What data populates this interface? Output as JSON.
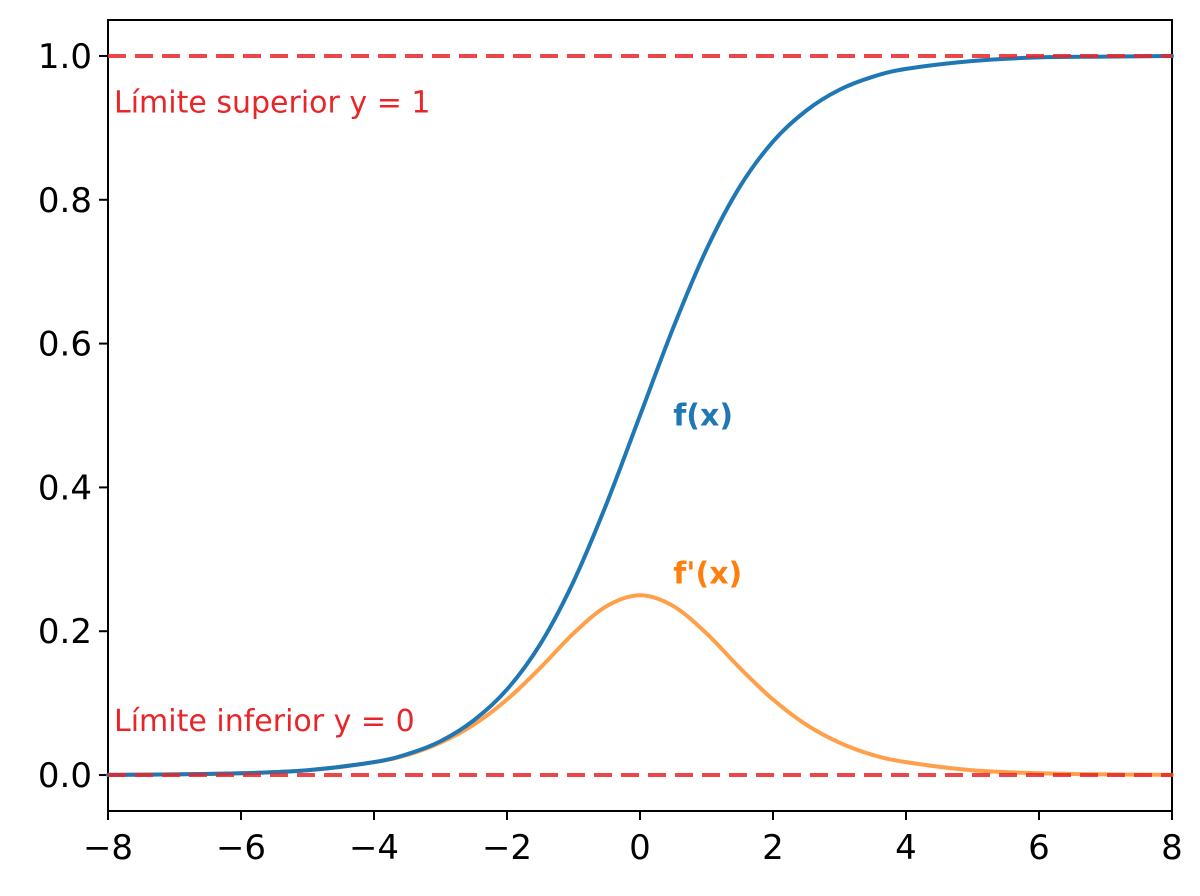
{
  "chart_data": {
    "type": "line",
    "title": "",
    "xlabel": "",
    "ylabel": "",
    "xlim": [
      -8,
      8
    ],
    "ylim": [
      -0.05,
      1.05
    ],
    "x_ticks": [
      -8,
      -6,
      -4,
      -2,
      0,
      2,
      4,
      6,
      8
    ],
    "x_tick_labels": [
      "−8",
      "−6",
      "−4",
      "−2",
      "0",
      "2",
      "4",
      "6",
      "8"
    ],
    "y_ticks": [
      0.0,
      0.2,
      0.4,
      0.6,
      0.8,
      1.0
    ],
    "y_tick_labels": [
      "0.0",
      "0.2",
      "0.4",
      "0.6",
      "0.8",
      "1.0"
    ],
    "grid": false,
    "series": [
      {
        "name": "f(x)",
        "color": "#1f77b4",
        "x": [
          -8,
          -7,
          -6,
          -5,
          -4,
          -3.5,
          -3,
          -2.5,
          -2,
          -1.5,
          -1,
          -0.5,
          0,
          0.5,
          1,
          1.5,
          2,
          2.5,
          3,
          3.5,
          4,
          5,
          6,
          7,
          8
        ],
        "y": [
          0.0003,
          0.0009,
          0.0025,
          0.0067,
          0.018,
          0.029,
          0.047,
          0.076,
          0.119,
          0.182,
          0.269,
          0.378,
          0.5,
          0.622,
          0.731,
          0.818,
          0.881,
          0.924,
          0.953,
          0.971,
          0.982,
          0.993,
          0.998,
          0.999,
          1.0
        ]
      },
      {
        "name": "f'(x)",
        "color": "#ff7f0e",
        "x": [
          -8,
          -7,
          -6,
          -5,
          -4,
          -3.5,
          -3,
          -2.5,
          -2,
          -1.5,
          -1,
          -0.5,
          0,
          0.5,
          1,
          1.5,
          2,
          2.5,
          3,
          3.5,
          4,
          5,
          6,
          7,
          8
        ],
        "y": [
          0.0003,
          0.0009,
          0.0025,
          0.0066,
          0.018,
          0.028,
          0.045,
          0.07,
          0.105,
          0.149,
          0.197,
          0.235,
          0.25,
          0.235,
          0.197,
          0.149,
          0.105,
          0.07,
          0.045,
          0.028,
          0.018,
          0.0066,
          0.0025,
          0.0009,
          0.0003
        ]
      }
    ],
    "hlines": [
      {
        "y": 1,
        "color": "#e8262a",
        "style": "dashed"
      },
      {
        "y": 0,
        "color": "#e8262a",
        "style": "dashed"
      }
    ],
    "annotations": [
      {
        "text": "Límite superior y = 1",
        "x": -8,
        "y": 0.935,
        "color": "#e8262a"
      },
      {
        "text": "Límite inferior y = 0",
        "x": -8,
        "y": 0.075,
        "color": "#e8262a"
      },
      {
        "text": "f(x)",
        "x": 0.5,
        "y": 0.5,
        "color": "#1f77b4"
      },
      {
        "text": "f'(x)",
        "x": 0.5,
        "y": 0.28,
        "color": "#ff7f0e"
      }
    ]
  }
}
